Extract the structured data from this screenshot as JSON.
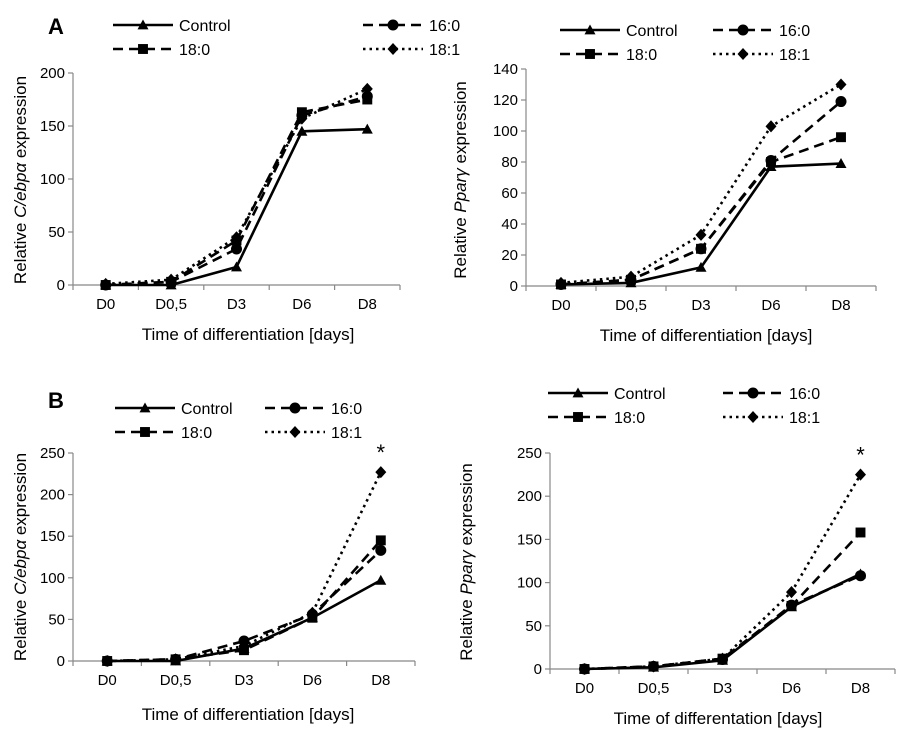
{
  "panel_labels": [
    "A",
    "B"
  ],
  "chart_data": [
    {
      "panel": "A",
      "type": "line",
      "ylabel": [
        "Relative ",
        "C/ebpα",
        " expression"
      ],
      "xlabel": "Time of differentiation [days]",
      "categories": [
        "D0",
        "D0,5",
        "D3",
        "D6",
        "D8"
      ],
      "ylim": [
        0,
        200
      ],
      "yticks": [
        0,
        50,
        100,
        150,
        200
      ],
      "legend_position": "top",
      "series": [
        {
          "name": "Control",
          "values": [
            0,
            0,
            17,
            145,
            147
          ],
          "marker": "triangle",
          "dash": "solid"
        },
        {
          "name": "16:0",
          "values": [
            0,
            3,
            34,
            160,
            178
          ],
          "marker": "circle",
          "dash": "dash"
        },
        {
          "name": "18:0",
          "values": [
            0,
            3,
            42,
            163,
            175
          ],
          "marker": "square",
          "dash": "dash"
        },
        {
          "name": "18:1",
          "values": [
            1,
            5,
            45,
            157,
            185
          ],
          "marker": "diamond",
          "dash": "dot"
        }
      ],
      "annotations": []
    },
    {
      "panel": "A",
      "type": "line",
      "ylabel": [
        "Relative ",
        "Pparγ",
        " expression"
      ],
      "xlabel": "Time of differentiation [days]",
      "categories": [
        "D0",
        "D0,5",
        "D3",
        "D6",
        "D8"
      ],
      "ylim": [
        0,
        140
      ],
      "yticks": [
        0,
        20,
        40,
        60,
        80,
        100,
        120,
        140
      ],
      "legend_position": "top",
      "series": [
        {
          "name": "Control",
          "values": [
            1,
            2,
            12,
            77,
            79
          ],
          "marker": "triangle",
          "dash": "solid"
        },
        {
          "name": "16:0",
          "values": [
            1,
            4,
            24,
            81,
            119
          ],
          "marker": "circle",
          "dash": "dash"
        },
        {
          "name": "18:0",
          "values": [
            1,
            4,
            24,
            80,
            96
          ],
          "marker": "square",
          "dash": "dash"
        },
        {
          "name": "18:1",
          "values": [
            2,
            6,
            33,
            103,
            130
          ],
          "marker": "diamond",
          "dash": "dot"
        }
      ],
      "annotations": []
    },
    {
      "panel": "B",
      "type": "line",
      "ylabel": [
        "Relative ",
        "C/ebpα",
        " expression"
      ],
      "xlabel": "Time of differentiation [days]",
      "categories": [
        "D0",
        "D0,5",
        "D3",
        "D6",
        "D8"
      ],
      "ylim": [
        0,
        250
      ],
      "yticks": [
        0,
        50,
        100,
        150,
        200,
        250
      ],
      "legend_position": "top",
      "series": [
        {
          "name": "Control",
          "values": [
            0,
            0,
            15,
            52,
            97
          ],
          "marker": "triangle",
          "dash": "solid"
        },
        {
          "name": "16:0",
          "values": [
            0,
            2,
            24,
            56,
            133
          ],
          "marker": "circle",
          "dash": "dash"
        },
        {
          "name": "18:0",
          "values": [
            0,
            2,
            13,
            52,
            145
          ],
          "marker": "square",
          "dash": "dash"
        },
        {
          "name": "18:1",
          "values": [
            0,
            2,
            18,
            58,
            227
          ],
          "marker": "diamond",
          "dash": "dot"
        }
      ],
      "annotations": [
        {
          "text": "*",
          "category": "D8",
          "value": 227
        }
      ]
    },
    {
      "panel": "B",
      "type": "line",
      "ylabel": [
        "Relative ",
        "Pparγ",
        "  expression"
      ],
      "xlabel": "Time  of differentation [days]",
      "categories": [
        "D0",
        "D0,5",
        "D3",
        "D6",
        "D8"
      ],
      "ylim": [
        0,
        250
      ],
      "yticks": [
        0,
        50,
        100,
        150,
        200,
        250
      ],
      "legend_position": "top",
      "series": [
        {
          "name": "Control",
          "values": [
            0,
            2,
            10,
            72,
            110
          ],
          "marker": "triangle",
          "dash": "solid"
        },
        {
          "name": "16:0",
          "values": [
            0,
            3,
            11,
            74,
            108
          ],
          "marker": "circle",
          "dash": "dash"
        },
        {
          "name": "18:0",
          "values": [
            0,
            3,
            12,
            73,
            158
          ],
          "marker": "square",
          "dash": "dash"
        },
        {
          "name": "18:1",
          "values": [
            0,
            3,
            12,
            89,
            225
          ],
          "marker": "diamond",
          "dash": "dot"
        }
      ],
      "annotations": [
        {
          "text": "*",
          "category": "D8",
          "value": 225
        }
      ]
    }
  ]
}
